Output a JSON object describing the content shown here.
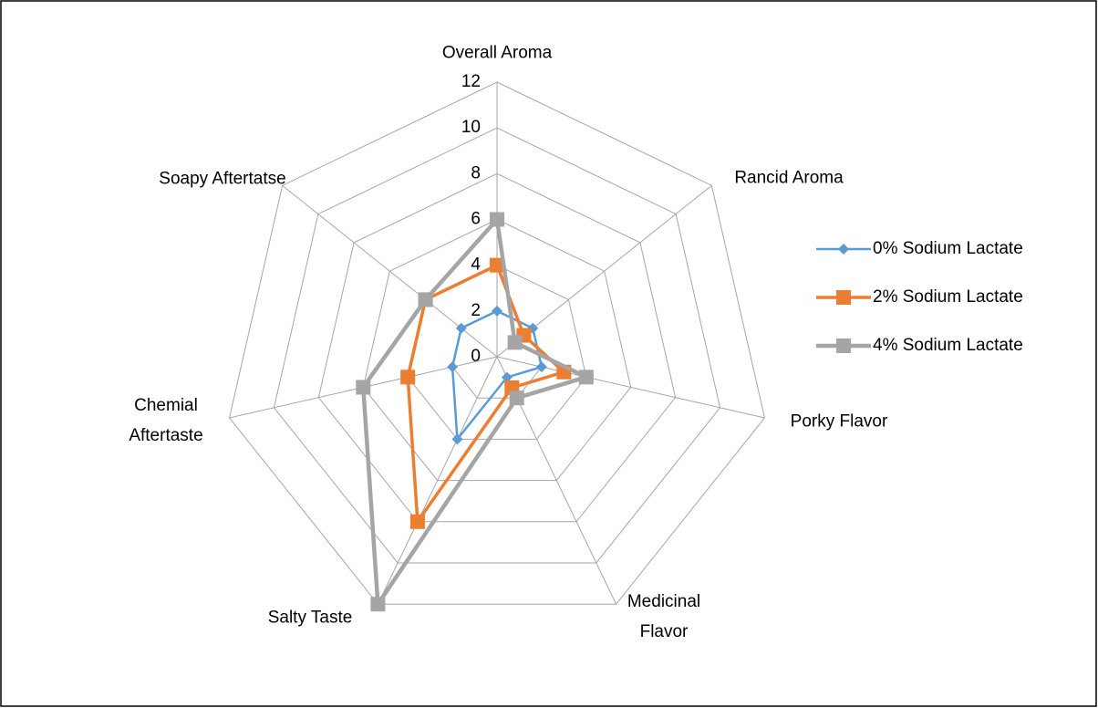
{
  "chart_data": {
    "type": "radar",
    "categories": [
      "Overall Aroma",
      "Rancid Aroma",
      "Porky Flavor",
      "Medicinal Flavor",
      "Salty Taste",
      "Chemial Aftertaste",
      "Soapy Aftertatse"
    ],
    "series": [
      {
        "name": "0% Sodium Lactate",
        "color": "#5b9bd5",
        "marker": "diamond",
        "values": [
          2,
          2,
          2,
          1,
          4,
          2,
          2
        ]
      },
      {
        "name": "2% Sodium Lactate",
        "color": "#ed7d31",
        "marker": "square",
        "values": [
          4,
          1.5,
          3,
          1.5,
          8,
          4,
          4
        ]
      },
      {
        "name": "4% Sodium Lactate",
        "color": "#a5a5a5",
        "marker": "square",
        "values": [
          6,
          1,
          4,
          2,
          12,
          6,
          4
        ]
      }
    ],
    "ylim": [
      0,
      12
    ],
    "yticks": [
      0,
      2,
      4,
      6,
      8,
      10,
      12
    ],
    "grid": true,
    "legend": "right"
  }
}
